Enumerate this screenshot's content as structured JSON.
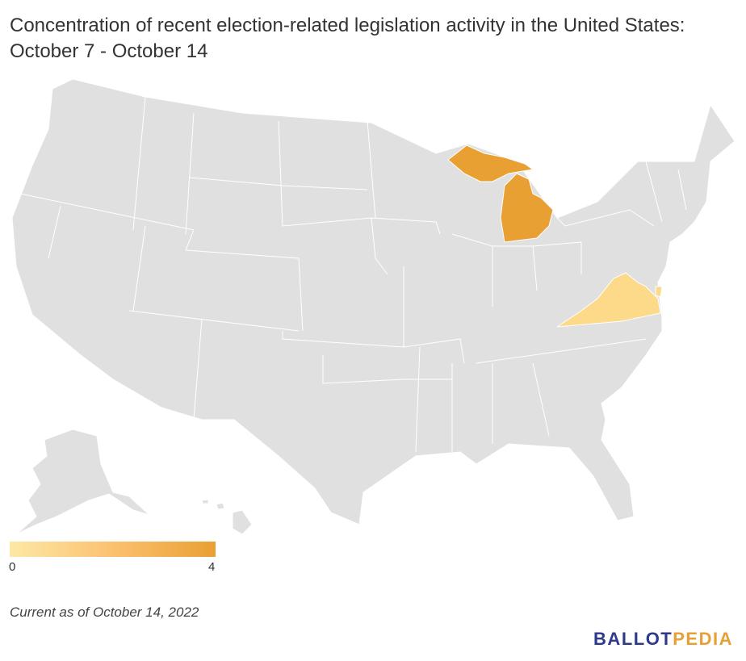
{
  "title": "Concentration of recent election-related legislation activity in the United States: October 7 - October 14",
  "legend": {
    "min_label": "0",
    "max_label": "4",
    "color_low": "#fde8a6",
    "color_high": "#e9a033"
  },
  "map": {
    "base_color": "#e0e0e0",
    "border_color": "#ffffff",
    "highlighted": [
      {
        "state": "Michigan",
        "value": 4,
        "color": "#e9a033"
      },
      {
        "state": "Virginia",
        "value": 1,
        "color": "#fdd98a"
      }
    ]
  },
  "note": "Current as of October 14, 2022",
  "logo": {
    "part1": "BALLOT",
    "part2": "PEDIA"
  }
}
